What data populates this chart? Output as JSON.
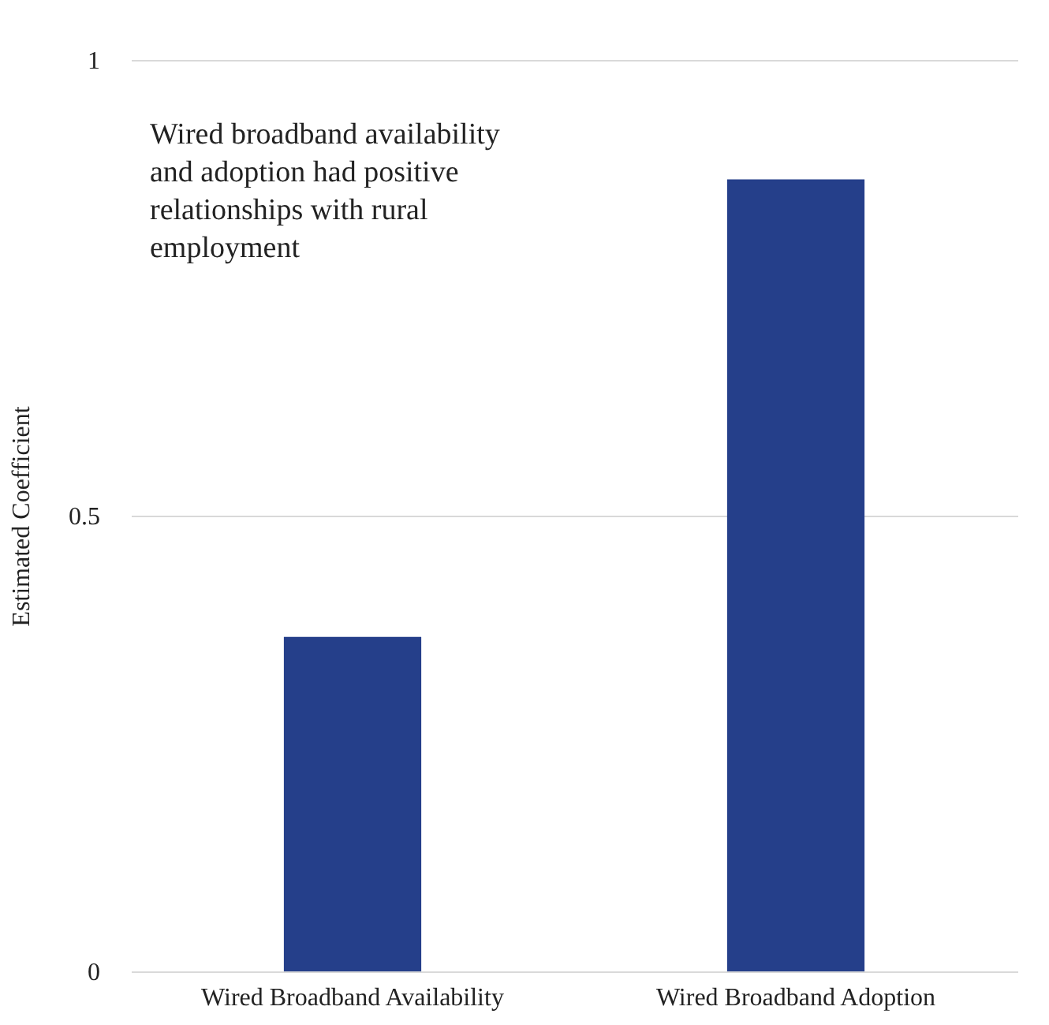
{
  "chart_data": {
    "type": "bar",
    "categories": [
      "Wired Broadband Availability",
      "Wired Broadband Adoption"
    ],
    "values": [
      0.367,
      0.869
    ],
    "color": "#253f8a",
    "ylabel": "Estimated Coefficient",
    "ylim": [
      0,
      1
    ],
    "yticks": [
      {
        "value": 0,
        "label": "0"
      },
      0.5,
      {
        "value": 1,
        "label": "1"
      }
    ],
    "grid": "y",
    "annotations": [
      "Wired broadband availability and adoption had positive relationships with rural employment"
    ]
  }
}
